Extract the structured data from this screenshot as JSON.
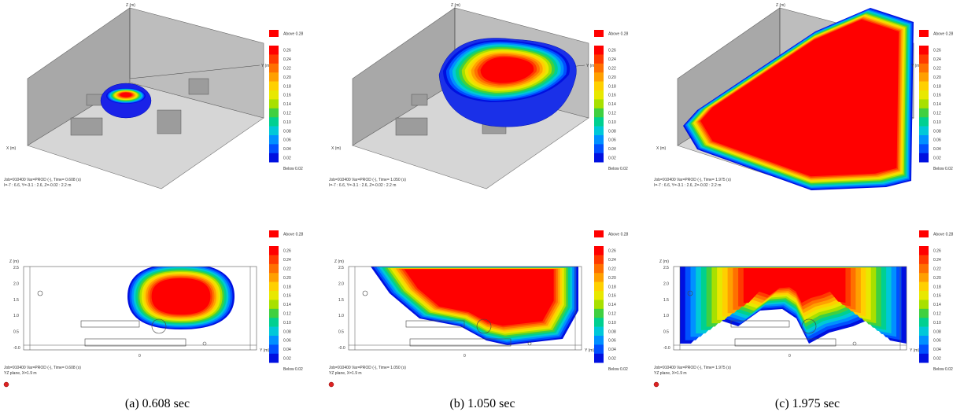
{
  "panels": [
    {
      "caption": "(a) 0.608 sec",
      "top": {
        "info": [
          "Job=910400  Var=PROD (-), Time=  0.608 (s)",
          "I=-7 : 6.6, Y=-3.1 : 2.6, Z=-0.02 : 2.2 m"
        ]
      },
      "bottom": {
        "info": [
          "Job=910400  Var=PROD (-), Time=  0.608 (s)",
          "YZ plane, X=1.9 m"
        ]
      }
    },
    {
      "caption": "(b) 1.050 sec",
      "top": {
        "info": [
          "Job=910400  Var=PROD (-), Time=  1.050 (s)",
          "I=-7 : 6.6, Y=-3.1 : 2.6, Z=-0.02 : 2.2 m"
        ]
      },
      "bottom": {
        "info": [
          "Job=910400  Var=PROD (-), Time=  1.050 (s)",
          "YZ plane, X=1.9 m"
        ]
      }
    },
    {
      "caption": "(c) 1.975 sec",
      "top": {
        "info": [
          "Job=910400  Var=PROD (-), Time=  1.975 (s)",
          "I=-7 : 6.6, Y=-3.1 : 2.6, Z=-0.02 : 2.2 m"
        ]
      },
      "bottom": {
        "info": [
          "Job=910400  Var=PROD (-), Time=  1.975 (s)",
          "YZ plane, X=1.9 m"
        ]
      }
    }
  ],
  "legend": {
    "above": "Above 0.28",
    "below": "Below 0.02",
    "labels": [
      "0.26",
      "0.24",
      "0.22",
      "0.20",
      "0.18",
      "0.16",
      "0.14",
      "0.12",
      "0.10",
      "0.08",
      "0.06",
      "0.04",
      "0.02"
    ],
    "above_color": "#ff0000",
    "colors": [
      "#ff0000",
      "#ff3a00",
      "#ff7000",
      "#ffa000",
      "#ffd000",
      "#e8e800",
      "#a8e000",
      "#40d040",
      "#00d090",
      "#00c8d8",
      "#0090ff",
      "#0050ff",
      "#0010e0"
    ]
  },
  "axes": {
    "z": "Z (m)",
    "y": "Y (m)",
    "x": "X (m)",
    "z_ticks": [
      "2.5",
      "2.0",
      "1.5",
      "1.0",
      "0.5",
      "-0.0"
    ],
    "y_tick": "0"
  }
}
